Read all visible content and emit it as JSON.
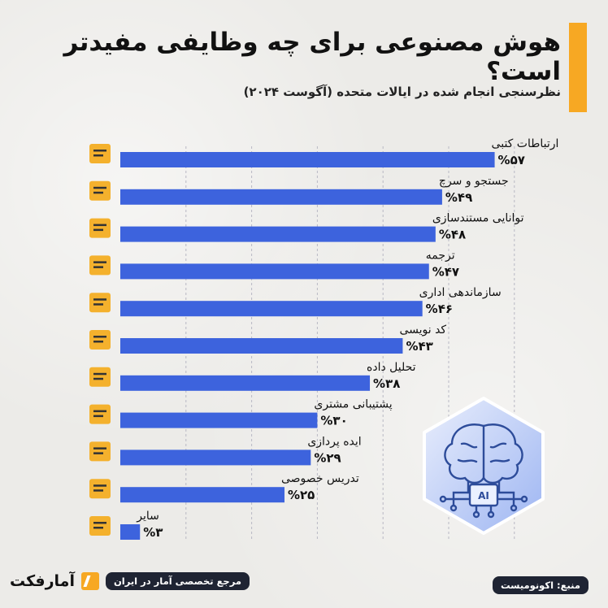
{
  "header": {
    "title": "هوش مصنوعی برای چه وظایفی مفیدتر است؟",
    "subtitle": "نظرسنجی انجام شده در ایالات متحده (آگوست ۲۰۲۴)"
  },
  "chart_data": {
    "type": "bar",
    "orientation": "horizontal",
    "title": "هوش مصنوعی برای چه وظایفی مفیدتر است؟",
    "subtitle": "نظرسنجی انجام شده در ایالات متحده (آگوست ۲۰۲۴)",
    "xlim": [
      0,
      60
    ],
    "grid": true,
    "categories": [
      "ارتباطات کتبی",
      "جستجو و سرچ",
      "توانایی مستندسازی",
      "ترجمه",
      "سازماندهی اداری",
      "کد نویسی",
      "تحلیل داده",
      "پشتیبانی مشتری",
      "ایده پردازی",
      "تدریس خصوصی",
      "سایر"
    ],
    "values": [
      57,
      49,
      48,
      47,
      46,
      43,
      38,
      30,
      29,
      25,
      3
    ],
    "value_labels": [
      "%۵۷",
      "%۴۹",
      "%۴۸",
      "%۴۷",
      "%۴۶",
      "%۴۳",
      "%۳۸",
      "%۳۰",
      "%۲۹",
      "%۲۵",
      "%۳"
    ],
    "icons": [
      "writing-hand-icon",
      "search-document-icon",
      "document-folder-icon",
      "translate-icon",
      "clipboard-icon",
      "code-file-icon",
      "data-analysis-icon",
      "headset-icon",
      "idea-person-icon",
      "teaching-board-icon",
      "briefcase-icon"
    ],
    "bar_color": "#3d63dd"
  },
  "badge": {
    "text": "AI"
  },
  "footer": {
    "brand": "آمارفکت",
    "tagline": "مرجع تخصصی آمار در ایران",
    "source": "منبع: اکونومیست"
  },
  "colors": {
    "accent": "#f7a823",
    "bar": "#3d63dd",
    "pill": "#1f2433"
  }
}
